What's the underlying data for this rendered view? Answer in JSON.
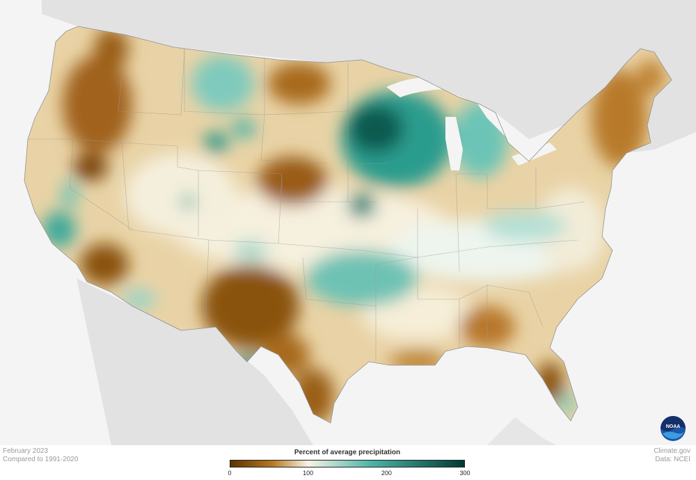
{
  "date_label": "February 2023",
  "baseline_label": "Compared to 1991-2020",
  "source_site": "Climate.gov",
  "source_data": "Data: NCEI",
  "legend": {
    "title": "Percent of average precipitation",
    "ticks": [
      {
        "label": "0",
        "value": 0
      },
      {
        "label": "100",
        "value": 100
      },
      {
        "label": "200",
        "value": 200
      },
      {
        "label": "300",
        "value": 300
      }
    ],
    "colors": {
      "dry_max": "#5a3300",
      "dry": "#b87820",
      "near_normal": "#f8f3e4",
      "wet": "#4cb5a8",
      "wet_max": "#003a32"
    }
  },
  "logo": {
    "text": "NOAA",
    "icon": "noaa-logo-icon"
  }
}
